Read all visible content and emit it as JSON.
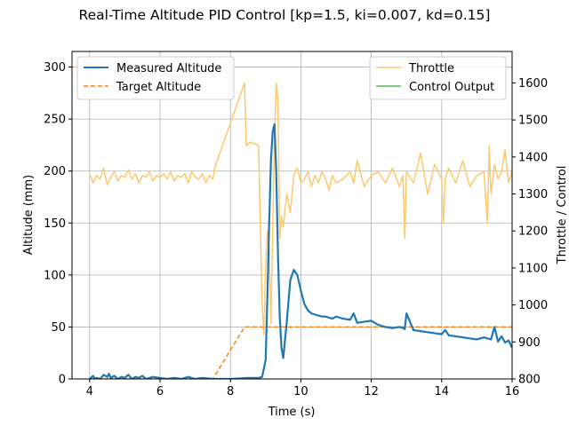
{
  "chart_data": {
    "type": "line",
    "title": "Real-Time Altitude PID Control [kp=1.5, ki=0.007, kd=0.15]",
    "xlabel": "Time (s)",
    "ylabel": "Altitude (mm)",
    "y2label": "Throttle / Control",
    "xlim": [
      3.5,
      16
    ],
    "ylim": [
      0,
      315
    ],
    "y2lim": [
      800,
      1685
    ],
    "xticks": [
      4,
      6,
      8,
      10,
      12,
      14,
      16
    ],
    "yticks": [
      0,
      50,
      100,
      150,
      200,
      250,
      300
    ],
    "y2ticks": [
      800,
      900,
      1000,
      1100,
      1200,
      1300,
      1400,
      1500,
      1600
    ],
    "grid": true,
    "legend_left": {
      "placement": "upper-left",
      "entries": [
        "Measured Altitude",
        "Target Altitude"
      ]
    },
    "legend_right": {
      "placement": "upper-right",
      "entries": [
        "Throttle",
        "Control Output"
      ]
    },
    "colors": {
      "measured": "#1f77b4",
      "target": "#ff7f0e",
      "throttle": "#fdc96b",
      "control": "#5cb85c"
    },
    "series": [
      {
        "name": "Measured Altitude",
        "axis": "left",
        "style": "solid",
        "x": [
          4.0,
          4.1,
          4.15,
          4.2,
          4.3,
          4.4,
          4.5,
          4.55,
          4.6,
          4.7,
          4.8,
          4.9,
          5.0,
          5.1,
          5.2,
          5.3,
          5.4,
          5.5,
          5.6,
          5.8,
          6.0,
          6.2,
          6.4,
          6.6,
          6.8,
          7.0,
          7.2,
          7.5,
          8.0,
          8.5,
          8.8,
          8.9,
          9.0,
          9.05,
          9.1,
          9.15,
          9.2,
          9.25,
          9.3,
          9.35,
          9.4,
          9.45,
          9.5,
          9.6,
          9.7,
          9.8,
          9.9,
          10.0,
          10.1,
          10.2,
          10.3,
          10.4,
          10.5,
          10.6,
          10.7,
          10.8,
          10.9,
          11.0,
          11.2,
          11.4,
          11.5,
          11.6,
          11.8,
          12.0,
          12.2,
          12.4,
          12.6,
          12.8,
          12.9,
          12.95,
          13.0,
          13.2,
          13.4,
          13.6,
          13.8,
          14.0,
          14.1,
          14.2,
          14.4,
          14.6,
          14.8,
          15.0,
          15.2,
          15.4,
          15.5,
          15.6,
          15.7,
          15.8,
          15.9,
          16.0
        ],
        "values": [
          0,
          3,
          0,
          1,
          0,
          4,
          2,
          5,
          1,
          3,
          0,
          2,
          1,
          4,
          0,
          2,
          1,
          3,
          0,
          2,
          1,
          0,
          1,
          0,
          2,
          0,
          1,
          0,
          0,
          1,
          1,
          2,
          18,
          80,
          150,
          210,
          238,
          245,
          200,
          120,
          60,
          30,
          20,
          55,
          95,
          105,
          100,
          85,
          72,
          66,
          63,
          62,
          61,
          60,
          60,
          59,
          58,
          60,
          58,
          57,
          63,
          54,
          55,
          56,
          52,
          50,
          49,
          50,
          49,
          48,
          63,
          47,
          46,
          45,
          44,
          43,
          47,
          42,
          41,
          40,
          39,
          38,
          40,
          38,
          50,
          36,
          41,
          35,
          37,
          30
        ]
      },
      {
        "name": "Target Altitude",
        "axis": "left",
        "style": "dashed",
        "x": [
          4.0,
          7.5,
          8.4,
          16.0
        ],
        "values": [
          0,
          0,
          50,
          50
        ]
      },
      {
        "name": "Throttle",
        "axis": "right",
        "style": "solid",
        "x": [
          4.0,
          4.1,
          4.2,
          4.3,
          4.4,
          4.5,
          4.6,
          4.7,
          4.8,
          4.9,
          5.0,
          5.1,
          5.2,
          5.3,
          5.4,
          5.5,
          5.6,
          5.7,
          5.8,
          5.9,
          6.0,
          6.1,
          6.2,
          6.3,
          6.4,
          6.5,
          6.6,
          6.7,
          6.8,
          6.9,
          7.0,
          7.1,
          7.2,
          7.3,
          7.4,
          7.5,
          7.55,
          8.4,
          8.45,
          8.55,
          8.7,
          8.8,
          8.9,
          8.95,
          9.0,
          9.05,
          9.1,
          9.15,
          9.2,
          9.25,
          9.3,
          9.35,
          9.4,
          9.45,
          9.5,
          9.6,
          9.7,
          9.8,
          9.9,
          10.0,
          10.1,
          10.2,
          10.3,
          10.4,
          10.5,
          10.6,
          10.7,
          10.8,
          10.9,
          11.0,
          11.2,
          11.4,
          11.5,
          11.6,
          11.8,
          12.0,
          12.2,
          12.4,
          12.6,
          12.8,
          12.9,
          12.95,
          13.0,
          13.2,
          13.4,
          13.6,
          13.8,
          14.0,
          14.05,
          14.1,
          14.2,
          14.4,
          14.6,
          14.8,
          15.0,
          15.2,
          15.3,
          15.35,
          15.4,
          15.5,
          15.6,
          15.7,
          15.8,
          15.9,
          16.0
        ],
        "values": [
          1355,
          1330,
          1350,
          1340,
          1370,
          1325,
          1345,
          1360,
          1335,
          1350,
          1345,
          1365,
          1340,
          1355,
          1330,
          1350,
          1345,
          1360,
          1335,
          1350,
          1345,
          1355,
          1340,
          1360,
          1335,
          1350,
          1345,
          1355,
          1330,
          1360,
          1345,
          1340,
          1355,
          1330,
          1350,
          1340,
          1370,
          1600,
          1430,
          1440,
          1435,
          1430,
          1000,
          920,
          1100,
          1200,
          1150,
          950,
          1200,
          1450,
          1600,
          1550,
          1180,
          1240,
          1210,
          1300,
          1250,
          1350,
          1370,
          1330,
          1340,
          1360,
          1320,
          1350,
          1330,
          1360,
          1340,
          1310,
          1350,
          1330,
          1340,
          1360,
          1330,
          1390,
          1320,
          1350,
          1360,
          1330,
          1370,
          1320,
          1350,
          1180,
          1360,
          1330,
          1410,
          1300,
          1380,
          1340,
          1220,
          1340,
          1370,
          1330,
          1390,
          1320,
          1350,
          1360,
          1220,
          1430,
          1300,
          1380,
          1340,
          1360,
          1420,
          1330,
          1360
        ]
      },
      {
        "name": "Control Output",
        "axis": "right",
        "style": "solid",
        "x": [],
        "values": []
      }
    ]
  }
}
